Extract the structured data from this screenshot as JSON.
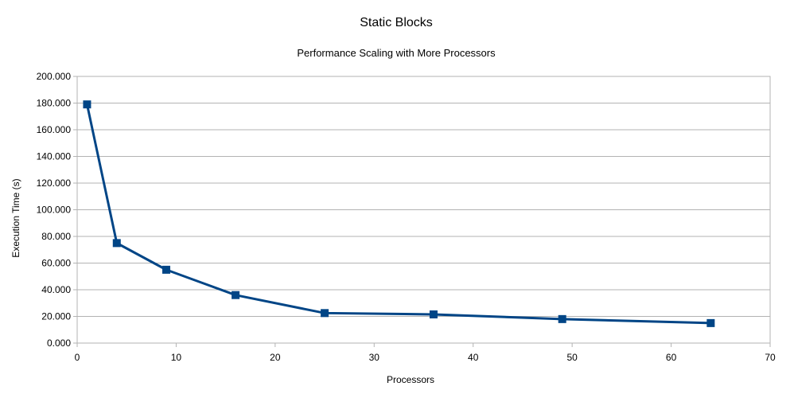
{
  "chart_data": {
    "type": "line",
    "title": "Static Blocks",
    "subtitle": "Performance Scaling with More Processors",
    "xlabel": "Processors",
    "ylabel": "Execution Time (s)",
    "xlim": [
      0,
      70
    ],
    "ylim": [
      0,
      200
    ],
    "xticks": [
      "0",
      "10",
      "20",
      "30",
      "40",
      "50",
      "60",
      "70"
    ],
    "yticks": [
      "0.000",
      "20.000",
      "40.000",
      "60.000",
      "80.000",
      "100.000",
      "120.000",
      "140.000",
      "160.000",
      "180.000",
      "200.000"
    ],
    "grid": true,
    "legend": "none",
    "colors": {
      "series": "#004586",
      "grid": "#b3b3b3"
    },
    "series": [
      {
        "marker": "square",
        "points": [
          {
            "x": 1,
            "y": 179
          },
          {
            "x": 4,
            "y": 75
          },
          {
            "x": 9,
            "y": 55
          },
          {
            "x": 16,
            "y": 36
          },
          {
            "x": 25,
            "y": 22.5
          },
          {
            "x": 36,
            "y": 21.5
          },
          {
            "x": 49,
            "y": 18
          },
          {
            "x": 64,
            "y": 15
          }
        ]
      }
    ]
  }
}
